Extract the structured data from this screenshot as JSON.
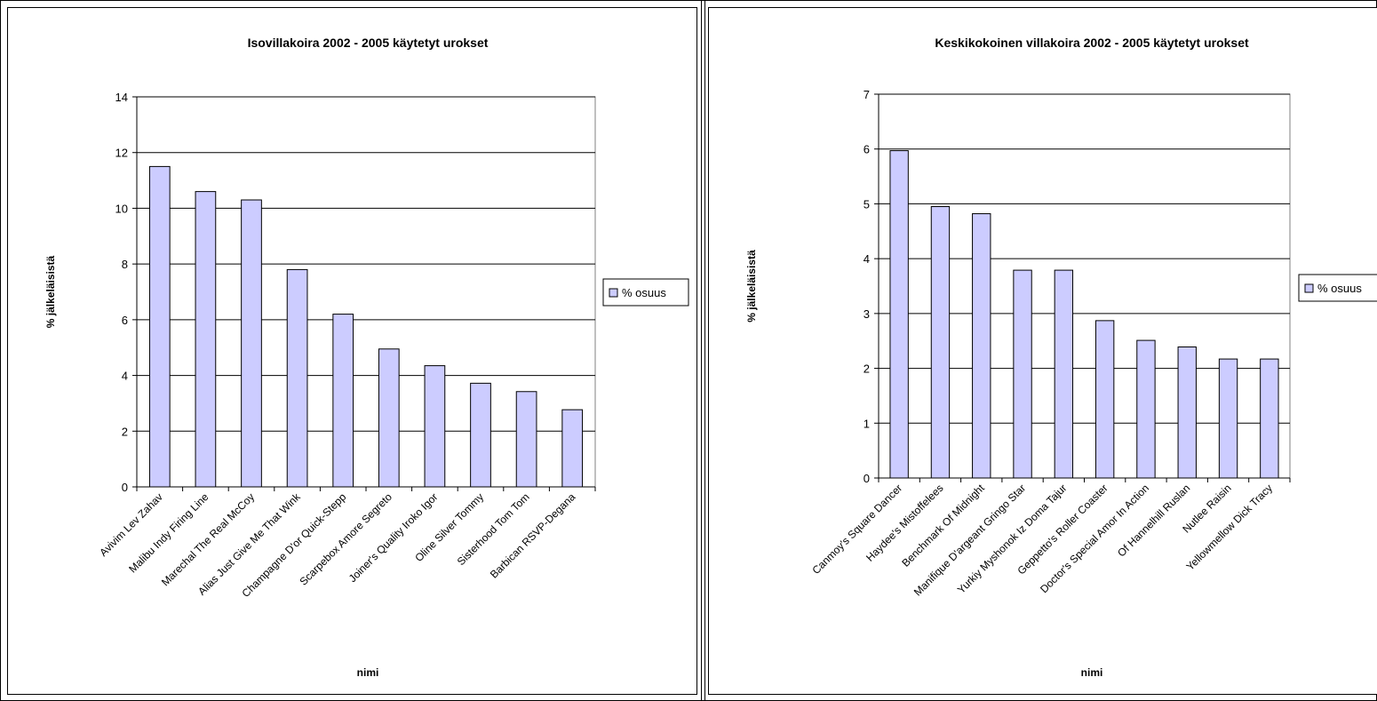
{
  "colors": {
    "bar_fill": "#ccccff",
    "bar_stroke": "#000000",
    "plot_bg": "#ffffff",
    "grid": "#000000"
  },
  "chart_data": [
    {
      "type": "bar",
      "title": "Isovillakoira 2002 - 2005 käytetyt urokset",
      "xlabel": "nimi",
      "ylabel": "% jälkeläisistä",
      "ylim": [
        0,
        14
      ],
      "yticks": [
        0,
        2,
        4,
        6,
        8,
        10,
        12,
        14
      ],
      "ytick_labels": [
        "0",
        "2",
        "4",
        "6",
        "8",
        "10",
        "12",
        "14"
      ],
      "grid": true,
      "legend_position": "right",
      "categories": [
        "Avivim Lev Zahav",
        "Malibu Indy Firing Line",
        "Marechal The Real McCoy",
        "Alias Just Give Me That Wink",
        "Champagne D'or Quick-Stepp",
        "Scarpebox Amore Segreto",
        "Joiner's Quality Iroko Igor",
        "Oline Silver Tommy",
        "Sisterhood Tom Tom",
        "Barbican RSVP-Degana"
      ],
      "series": [
        {
          "name": "% osuus",
          "values": [
            11.5,
            10.6,
            10.3,
            7.8,
            6.2,
            4.95,
            4.35,
            3.72,
            3.42,
            2.77
          ]
        }
      ]
    },
    {
      "type": "bar",
      "title": "Keskikokoinen villakoira 2002 - 2005 käytetyt urokset",
      "xlabel": "nimi",
      "ylabel": "% jälkeläisistä",
      "ylim": [
        0,
        7
      ],
      "yticks": [
        0,
        1,
        2,
        3,
        4,
        5,
        6,
        7
      ],
      "ytick_labels": [
        "0",
        "1",
        "2",
        "3",
        "4",
        "5",
        "6",
        "7"
      ],
      "grid": true,
      "legend_position": "right",
      "categories": [
        "Canmoy's Square Dancer",
        "Haydee's Mistoffelees",
        "Benchmark Of Midnight",
        "Manifique D'argeant Gringo Star",
        "Yurkiy Myshonok Iz Doma Tajur",
        "Geppetto's Roller Coaster",
        "Doctor's Special Amor In Action",
        "Of Hannelhill Ruslan",
        "Nutlee Raisin",
        "Yellowmellow Dick Tracy"
      ],
      "series": [
        {
          "name": "% osuus",
          "values": [
            5.97,
            4.95,
            4.82,
            3.79,
            3.79,
            2.87,
            2.51,
            2.39,
            2.17,
            2.17
          ]
        }
      ]
    }
  ]
}
